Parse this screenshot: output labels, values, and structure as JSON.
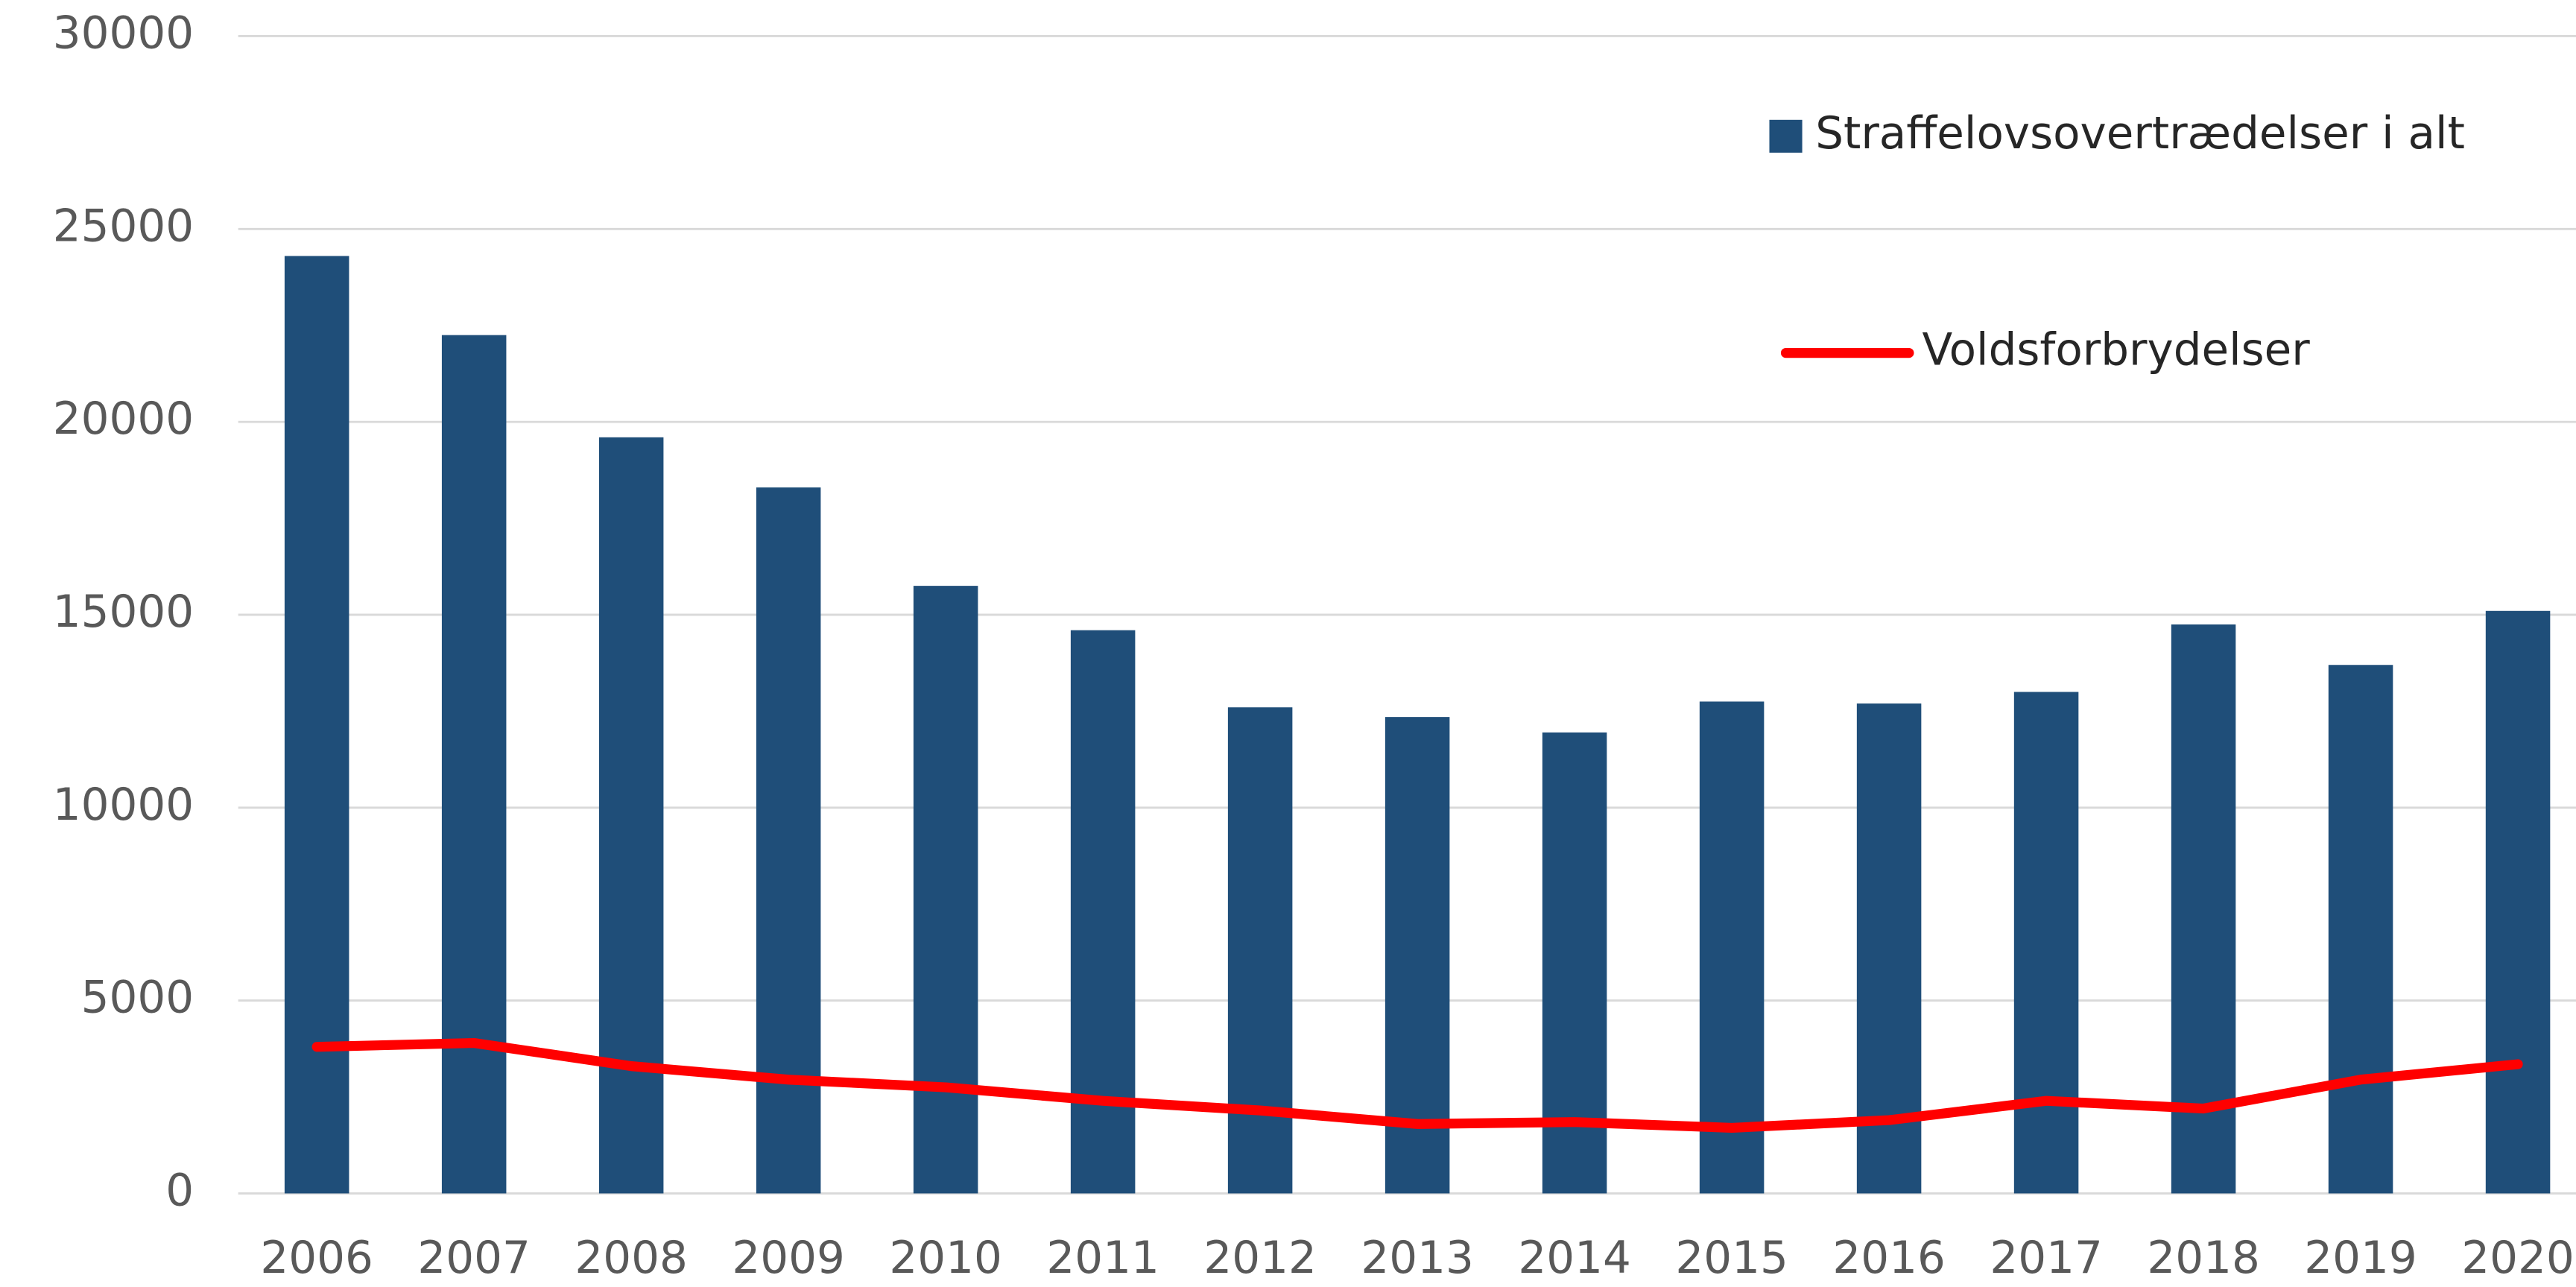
{
  "chart_data": {
    "type": "bar_line",
    "categories": [
      "2006",
      "2007",
      "2008",
      "2009",
      "2010",
      "2011",
      "2012",
      "2013",
      "2014",
      "2015",
      "2016",
      "2017",
      "2018",
      "2019",
      "2020"
    ],
    "series": [
      {
        "name": "Straffelovsovertrædelser i alt",
        "type": "bar",
        "color": "#1f4e79",
        "values": [
          24300,
          22250,
          19600,
          18300,
          15750,
          14600,
          12600,
          12350,
          11950,
          12750,
          12700,
          13000,
          14750,
          13700,
          15100
        ]
      },
      {
        "name": "Voldsforbrydelser",
        "type": "line",
        "color": "#ff0000",
        "values": [
          3800,
          3900,
          3300,
          2950,
          2750,
          2400,
          2150,
          1800,
          1850,
          1700,
          1900,
          2400,
          2200,
          2950,
          3350
        ]
      }
    ],
    "ylim": [
      0,
      30000
    ],
    "yticks": [
      0,
      5000,
      10000,
      15000,
      20000,
      25000,
      30000
    ],
    "grid": true,
    "legend": "upper right"
  }
}
